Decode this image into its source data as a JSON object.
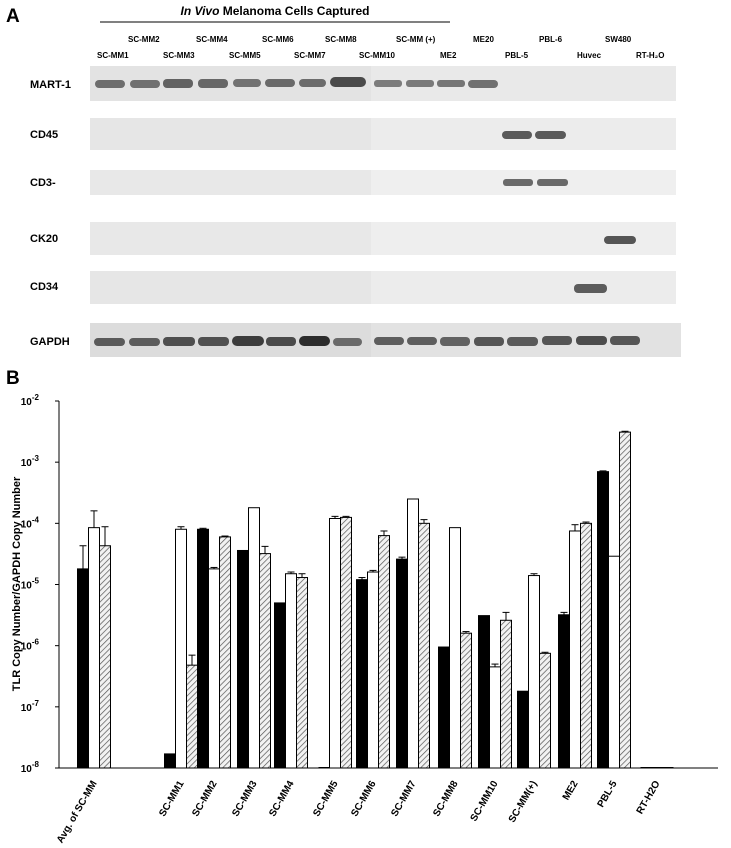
{
  "panel_a": {
    "letter": "A",
    "header_italic": "In Vivo",
    "header_rest": " Melanoma Cells Captured",
    "lanes_top": [
      "SC-MM2",
      "SC-MM4",
      "SC-MM6",
      "SC-MM8",
      "SC-MM (+)",
      "ME20",
      "PBL-6",
      "SW480"
    ],
    "lanes_bottom": [
      "SC-MM1",
      "SC-MM3",
      "SC-MM5",
      "SC-MM7",
      "SC-MM10",
      "ME2",
      "PBL-5",
      "Huvec",
      "RT-H₂O"
    ],
    "markers": [
      "MART-1",
      "CD45",
      "CD3-",
      "CK20",
      "CD34",
      "GAPDH"
    ]
  },
  "panel_b": {
    "letter": "B",
    "colors": {
      "black": "#000000",
      "white": "#ffffff",
      "hatched": "#bdbdbd"
    }
  },
  "chart_data": {
    "type": "bar",
    "scale": "log",
    "ylabel": "TLR Copy Number/GAPDH Copy Number",
    "ylim": [
      1e-08,
      0.01
    ],
    "yticks": [
      {
        "base": "10",
        "exp": "-8"
      },
      {
        "base": "10",
        "exp": "-7"
      },
      {
        "base": "10",
        "exp": "-6"
      },
      {
        "base": "10",
        "exp": "-5"
      },
      {
        "base": "10",
        "exp": "-4"
      },
      {
        "base": "10",
        "exp": "-3"
      },
      {
        "base": "10",
        "exp": "-2"
      }
    ],
    "categories": [
      "Avg. of SC-MM",
      "SC-MM1",
      "SC-MM2",
      "SC-MM3",
      "SC-MM4",
      "SC-MM5",
      "SC-MM6",
      "SC-MM7",
      "SC-MM8",
      "SC-MM10",
      "SC-MM(+)",
      "ME2",
      "PBL-5",
      "RT-H2O"
    ],
    "series": [
      {
        "values": [
          1.8e-05,
          1.7e-08,
          8e-05,
          3.6e-05,
          5e-06,
          1e-08,
          1.2e-05,
          2.6e-05,
          9.5e-07,
          3.1e-06,
          1.8e-07,
          3.2e-06,
          0.0007,
          1e-08
        ],
        "errors": [
          4.3e-05,
          0,
          8.3e-05,
          0,
          0,
          0,
          1.3e-05,
          2.8e-05,
          0,
          0,
          0,
          3.5e-06,
          0.00072,
          0
        ]
      },
      {
        "values": [
          8.5e-05,
          8e-05,
          1.8e-05,
          0.00018,
          1.5e-05,
          0.00012,
          1.6e-05,
          0.00025,
          8.5e-05,
          4.5e-07,
          1.4e-05,
          7.5e-05,
          2.9e-05,
          1e-08
        ],
        "errors": [
          0.00016,
          8.8e-05,
          1.9e-05,
          0,
          1.6e-05,
          0.00013,
          1.7e-05,
          0,
          0,
          5e-07,
          1.5e-05,
          9.5e-05,
          0,
          0
        ]
      },
      {
        "values": [
          4.3e-05,
          4.8e-07,
          6e-05,
          3.2e-05,
          1.3e-05,
          0.000125,
          6.3e-05,
          0.0001,
          1.6e-06,
          2.6e-06,
          7.5e-07,
          0.0001,
          0.0031,
          1e-08
        ],
        "errors": [
          8.8e-05,
          7e-07,
          6.2e-05,
          4.2e-05,
          1.5e-05,
          0.00013,
          7.5e-05,
          0.000115,
          1.7e-06,
          3.5e-06,
          7.8e-07,
          0.000105,
          0.0032,
          0
        ]
      }
    ]
  }
}
